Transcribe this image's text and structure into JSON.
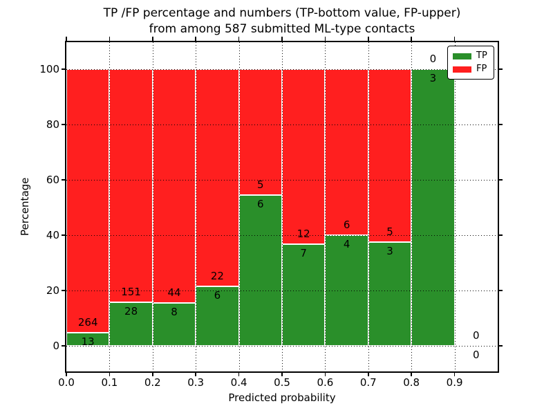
{
  "title": {
    "line1": "TP /FP percentage and numbers (TP-bottom value, FP-upper)",
    "line2": "from among 587 submitted ML-type contacts"
  },
  "axes": {
    "xlabel": "Predicted probability",
    "ylabel": "Percentage",
    "x_tick_labels": [
      "0.0",
      "0.1",
      "0.2",
      "0.3",
      "0.4",
      "0.5",
      "0.6",
      "0.7",
      "0.8",
      "0.9"
    ],
    "y_tick_labels": [
      "0",
      "20",
      "40",
      "60",
      "80",
      "100"
    ]
  },
  "legend": {
    "position": "upper right",
    "items": [
      {
        "label": "TP",
        "color": "#2a8f2a"
      },
      {
        "label": "FP",
        "color": "#ff1f1f"
      }
    ]
  },
  "colors": {
    "tp": "#2a8f2a",
    "fp": "#ff1f1f",
    "bar_edge": "#ffffff",
    "grid": "#000000",
    "text": "#000000",
    "background": "#ffffff"
  },
  "chart_data": {
    "type": "bar",
    "stacked": true,
    "normalized_to_percent": true,
    "title": "TP /FP percentage and numbers (TP-bottom value, FP-upper) from among 587 submitted ML-type contacts",
    "total_contacts": 587,
    "xlabel": "Predicted probability",
    "ylabel": "Percentage",
    "xlim": [
      0.0,
      1.0
    ],
    "ylim": [
      -10,
      110
    ],
    "grid": true,
    "legend_position": "upper right",
    "bin_width": 0.1,
    "series_names": [
      "TP",
      "FP"
    ],
    "bins": [
      {
        "x_start": 0.0,
        "x_end": 0.1,
        "tp": 13,
        "fp": 264
      },
      {
        "x_start": 0.1,
        "x_end": 0.2,
        "tp": 28,
        "fp": 151
      },
      {
        "x_start": 0.2,
        "x_end": 0.3,
        "tp": 8,
        "fp": 44
      },
      {
        "x_start": 0.3,
        "x_end": 0.4,
        "tp": 6,
        "fp": 22
      },
      {
        "x_start": 0.4,
        "x_end": 0.5,
        "tp": 6,
        "fp": 5
      },
      {
        "x_start": 0.5,
        "x_end": 0.6,
        "tp": 7,
        "fp": 12
      },
      {
        "x_start": 0.6,
        "x_end": 0.7,
        "tp": 4,
        "fp": 6
      },
      {
        "x_start": 0.7,
        "x_end": 0.8,
        "tp": 3,
        "fp": 5
      },
      {
        "x_start": 0.8,
        "x_end": 0.9,
        "tp": 3,
        "fp": 0
      },
      {
        "x_start": 0.9,
        "x_end": 1.0,
        "tp": 0,
        "fp": 0
      }
    ]
  }
}
